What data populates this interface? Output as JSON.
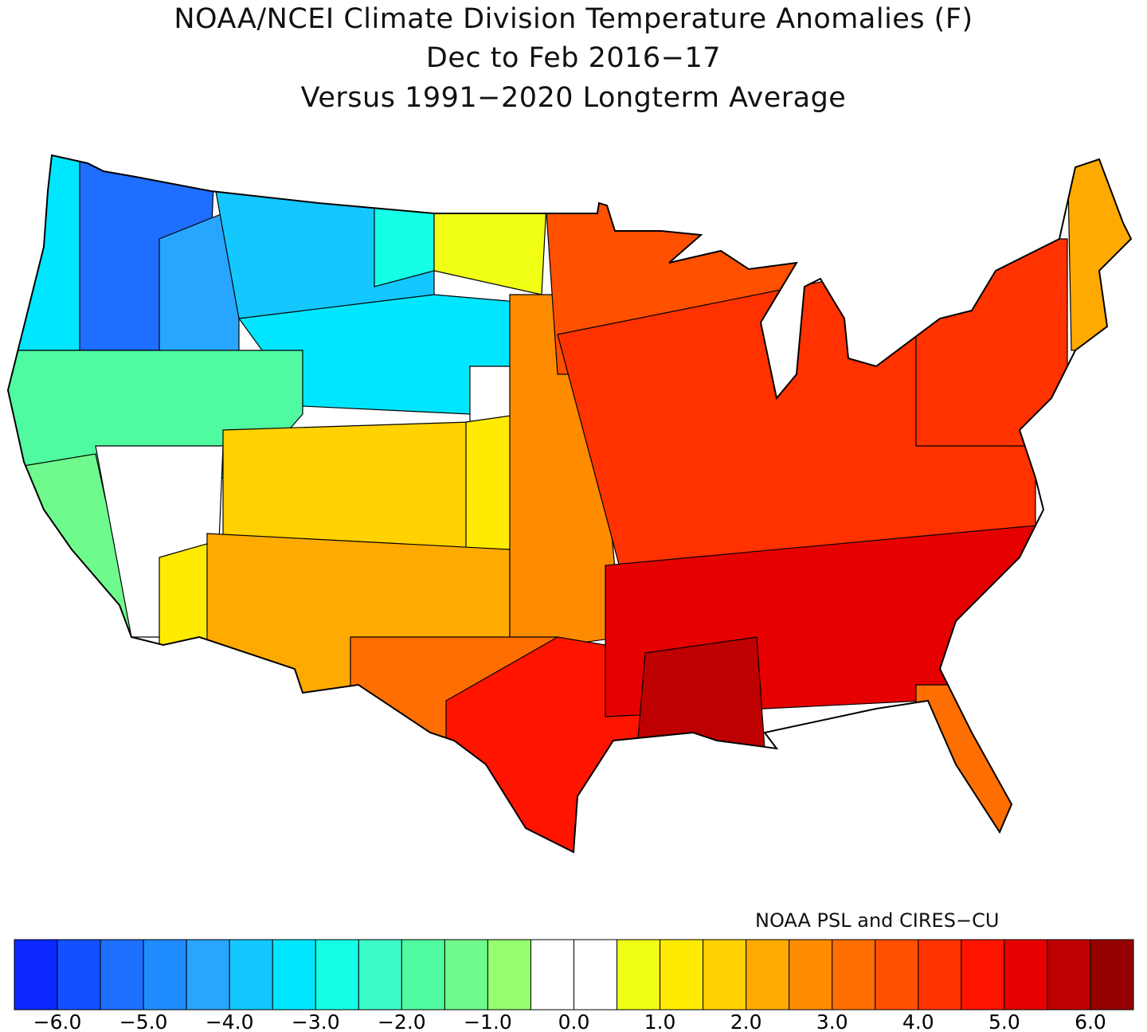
{
  "title": {
    "line1": "NOAA/NCEI Climate Division Temperature Anomalies (F)",
    "line2": "Dec to Feb 2016−17",
    "line3": "Versus 1991−2020 Longterm Average"
  },
  "credit": "NOAA PSL and CIRES−CU",
  "legend": {
    "min": -6.5,
    "step": 0.5,
    "colors": [
      "#0a28ff",
      "#1450ff",
      "#1e6eff",
      "#1e8cff",
      "#28a5ff",
      "#14c8ff",
      "#00e6ff",
      "#14ffe6",
      "#3cfac8",
      "#50faa0",
      "#6efa8c",
      "#96ff6e",
      "#ffffff",
      "#ffffff",
      "#f0ff14",
      "#ffeb00",
      "#ffd200",
      "#ffaa00",
      "#ff8c00",
      "#ff6e00",
      "#ff5000",
      "#ff3200",
      "#ff1400",
      "#e60000",
      "#be0000",
      "#960000"
    ],
    "labels": [
      "−6.0",
      "−5.0",
      "−4.0",
      "−3.0",
      "−2.0",
      "−1.0",
      "0.0",
      "1.0",
      "2.0",
      "3.0",
      "4.0",
      "5.0",
      "6.0"
    ]
  },
  "chart_data": {
    "type": "heatmap",
    "title": "NOAA/NCEI Climate Division Temperature Anomalies (F), Dec to Feb 2016-17, Versus 1991-2020 Longterm Average",
    "units": "F",
    "range": [
      -6.5,
      6.5
    ],
    "regions": {
      "pacific-coast-nw": -3.2,
      "washington-oregon-interior": -5.2,
      "idaho": -4.3,
      "montana": -4.0,
      "north-dakota-west": -2.8,
      "north-dakota-east": 0.8,
      "wyoming-south-dakota-west": -3.2,
      "northern-california-nevada": -2.0,
      "california-coast": -1.2,
      "nevada-south": 0.0,
      "colorado-north": 0.0,
      "utah-colorado": 1.8,
      "nebraska-kansas-west": 1.2,
      "arizona-west": 1.0,
      "arizona-new-mexico": 2.3,
      "plains-central": 2.7,
      "texas-west": 3.2,
      "midwest": 4.2,
      "upper-midwest": 3.8,
      "southeast-gulf": 5.2,
      "louisiana-mississippi": 5.7,
      "texas-south": 4.8,
      "florida": 3.3,
      "northeast": 4.2,
      "maine": 2.3
    }
  }
}
